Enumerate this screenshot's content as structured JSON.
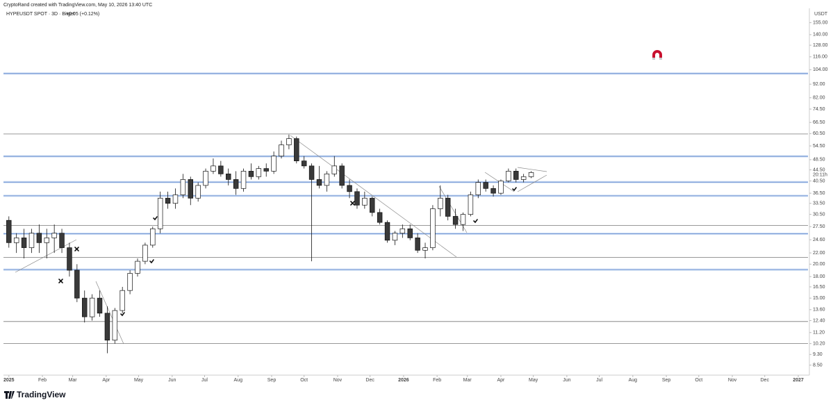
{
  "header": {
    "credit": "CryptoRand created with TradingView.com, May 10, 2026 13:40 UTC",
    "symbol": "HYPEUSDT SPOT · 3D · Bitget",
    "change": "+0.05 (+0.12%)"
  },
  "footer": {
    "brand": "TradingView"
  },
  "chart_data": {
    "type": "candlestick",
    "y_unit": "USDT",
    "countdown": "20:11h",
    "log_scale": true,
    "up_color": "#ffffff",
    "down_color": "#3a3a3a",
    "wick_color": "#111111",
    "ylim": [
      7.9,
      175
    ],
    "xlim": [
      -5,
      739
    ],
    "yticks": [
      {
        "value": 155,
        "label": "155.00"
      },
      {
        "value": 140,
        "label": "140.00"
      },
      {
        "value": 128,
        "label": "128.00"
      },
      {
        "value": 116,
        "label": "116.00"
      },
      {
        "value": 104,
        "label": "104.00"
      },
      {
        "value": 92,
        "label": "92.00"
      },
      {
        "value": 82,
        "label": "82.00"
      },
      {
        "value": 74.5,
        "label": "74.50"
      },
      {
        "value": 66.5,
        "label": "66.50"
      },
      {
        "value": 60.5,
        "label": "60.50"
      },
      {
        "value": 54.5,
        "label": "54.50"
      },
      {
        "value": 48.5,
        "label": "48.50"
      },
      {
        "value": 44.5,
        "label": "44.50"
      },
      {
        "value": 40.5,
        "label": "40.50"
      },
      {
        "value": 36.5,
        "label": "36.50"
      },
      {
        "value": 33.5,
        "label": "33.50"
      },
      {
        "value": 30.5,
        "label": "30.50"
      },
      {
        "value": 27.5,
        "label": "27.50"
      },
      {
        "value": 24.6,
        "label": "24.60"
      },
      {
        "value": 22,
        "label": "22.00"
      },
      {
        "value": 20,
        "label": "20.00"
      },
      {
        "value": 18,
        "label": "18.00"
      },
      {
        "value": 16.5,
        "label": "16.50"
      },
      {
        "value": 15,
        "label": "15.00"
      },
      {
        "value": 13.6,
        "label": "13.60"
      },
      {
        "value": 12.4,
        "label": "12.40"
      },
      {
        "value": 11.2,
        "label": "11.20"
      },
      {
        "value": 10.2,
        "label": "10.20"
      },
      {
        "value": 9.3,
        "label": "9.30"
      },
      {
        "value": 8.5,
        "label": "8.50"
      }
    ],
    "xticks": [
      {
        "value": 0,
        "label": "2025"
      },
      {
        "value": 31,
        "label": "Feb"
      },
      {
        "value": 59,
        "label": "Mar"
      },
      {
        "value": 90,
        "label": "Apr"
      },
      {
        "value": 120,
        "label": "May"
      },
      {
        "value": 151,
        "label": "Jun"
      },
      {
        "value": 181,
        "label": "Jul"
      },
      {
        "value": 212,
        "label": "Aug"
      },
      {
        "value": 243,
        "label": "Sep"
      },
      {
        "value": 273,
        "label": "Oct"
      },
      {
        "value": 304,
        "label": "Nov"
      },
      {
        "value": 334,
        "label": "Dec"
      },
      {
        "value": 365,
        "label": "2026"
      },
      {
        "value": 396,
        "label": "Feb"
      },
      {
        "value": 424,
        "label": "Mar"
      },
      {
        "value": 455,
        "label": "Apr"
      },
      {
        "value": 485,
        "label": "May"
      },
      {
        "value": 516,
        "label": "Jun"
      },
      {
        "value": 546,
        "label": "Jul"
      },
      {
        "value": 577,
        "label": "Aug"
      },
      {
        "value": 608,
        "label": "Sep"
      },
      {
        "value": 638,
        "label": "Oct"
      },
      {
        "value": 669,
        "label": "Nov"
      },
      {
        "value": 699,
        "label": "Dec"
      },
      {
        "value": 730,
        "label": "2027"
      }
    ],
    "levels": [
      {
        "value": 100.7,
        "color": "#8fb4e8"
      },
      {
        "value": 60.3,
        "color": "#777777"
      },
      {
        "value": 49.9,
        "color": "#8fb4e8"
      },
      {
        "value": 40.1,
        "color": "#8fb4e8"
      },
      {
        "value": 35.7,
        "color": "#8fb4e8"
      },
      {
        "value": 27.8,
        "color": "#777777"
      },
      {
        "value": 25.9,
        "color": "#8fb4e8"
      },
      {
        "value": 21.2,
        "color": "#777777"
      },
      {
        "value": 19.1,
        "color": "#8fb4e8"
      },
      {
        "value": 12.3,
        "color": "#777777"
      },
      {
        "value": 10.2,
        "color": "#777777"
      }
    ],
    "x": [
      0,
      7,
      14,
      21,
      28,
      35,
      42,
      49,
      56,
      63,
      70,
      77,
      84,
      91,
      98,
      105,
      112,
      119,
      126,
      133,
      140,
      147,
      154,
      161,
      168,
      175,
      182,
      189,
      196,
      203,
      210,
      217,
      224,
      231,
      238,
      245,
      252,
      259,
      266,
      273,
      280,
      287,
      294,
      301,
      308,
      315,
      322,
      329,
      336,
      343,
      350,
      357,
      364,
      371,
      378,
      385,
      392,
      399,
      406,
      413,
      420,
      427,
      434,
      441,
      448,
      455,
      462,
      469,
      476,
      483
    ],
    "open": [
      29,
      24,
      25,
      23,
      26,
      24,
      25,
      26,
      23,
      19,
      15,
      12.8,
      15,
      13.2,
      10.5,
      13.5,
      16,
      18.5,
      20.5,
      23.5,
      27,
      35,
      33.5,
      36,
      41,
      35,
      39,
      44,
      46,
      43,
      41,
      38,
      44,
      42,
      45,
      44,
      50,
      55,
      58,
      48,
      46,
      41,
      39,
      43,
      46,
      39,
      37,
      33,
      35,
      31,
      28.5,
      24.5,
      26,
      27,
      25,
      22.5,
      23,
      32,
      35,
      30,
      28,
      30.5,
      36,
      40,
      38,
      36.5,
      40.5,
      44,
      41,
      42
    ],
    "high": [
      30,
      26,
      27,
      27,
      28,
      27,
      28,
      27,
      24,
      20,
      16,
      15.5,
      16,
      14,
      13.8,
      16.5,
      19,
      21,
      24,
      27.5,
      37,
      37,
      38,
      43,
      42,
      40,
      45,
      49,
      48,
      45,
      44,
      45,
      47,
      46,
      47,
      52,
      57,
      60,
      59,
      50,
      47,
      46,
      44,
      50,
      47,
      41,
      38,
      37,
      35.5,
      32,
      29,
      26.5,
      28,
      28,
      26,
      24,
      33,
      39,
      36,
      32,
      31,
      37,
      41,
      41,
      39,
      41,
      45,
      45,
      43,
      44
    ],
    "low": [
      23,
      22,
      21,
      22,
      22,
      21,
      22,
      22,
      18,
      14.5,
      12.2,
      12.4,
      12.8,
      9.4,
      10.2,
      13.2,
      15.5,
      18,
      20,
      23,
      26,
      32,
      32,
      35,
      33,
      34,
      38,
      43,
      42,
      39,
      36,
      37,
      41,
      41,
      42,
      43,
      49,
      53,
      47,
      45,
      20.5,
      38,
      37,
      42,
      38,
      35,
      32,
      32,
      30,
      28,
      24,
      23.5,
      25,
      24.5,
      22,
      21,
      22.5,
      30,
      29,
      27,
      26.5,
      30,
      35,
      37,
      35.5,
      36,
      40,
      40,
      40,
      41.5
    ],
    "close": [
      24,
      25,
      23,
      26,
      24,
      25,
      26,
      23,
      19,
      15,
      12.8,
      15,
      13.2,
      10.5,
      13.5,
      16,
      18.5,
      20.5,
      23.5,
      27,
      35,
      33.5,
      36,
      41,
      35,
      39,
      44,
      46,
      43,
      41,
      38,
      44,
      42,
      45,
      44,
      50,
      55,
      58,
      48,
      46,
      41,
      39,
      43,
      46,
      39,
      37,
      33,
      35,
      31,
      28.5,
      24.5,
      26,
      27,
      25,
      22.5,
      23,
      32,
      35,
      30,
      28,
      30.5,
      36,
      40,
      38,
      36.5,
      40.5,
      44,
      41,
      42,
      43.5
    ]
  }
}
